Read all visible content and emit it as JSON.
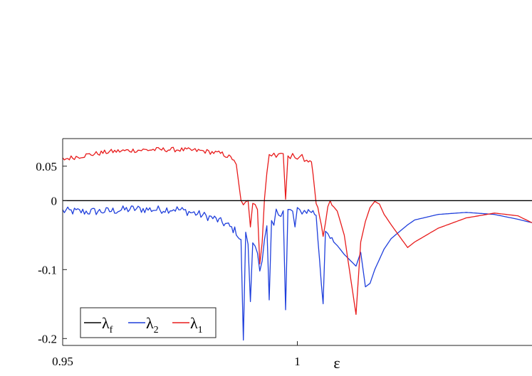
{
  "chart_data": {
    "type": "line",
    "xlabel": "ε",
    "ylabel": "",
    "title": "",
    "xlim": [
      0.95,
      1.05
    ],
    "ylim": [
      -0.21,
      0.09
    ],
    "xticks": [
      {
        "value": 0.95,
        "label": "0.95"
      },
      {
        "value": 1.0,
        "label": "1"
      }
    ],
    "yticks": [
      {
        "value": 0.05,
        "label": "0.05"
      },
      {
        "value": 0.0,
        "label": "0"
      },
      {
        "value": -0.1,
        "label": "-0.1"
      },
      {
        "value": -0.2,
        "label": "-0.2"
      }
    ],
    "legend_position": "bottom-left",
    "grid": false,
    "series": [
      {
        "name": "λf",
        "name_main": "λ",
        "name_sub": "f",
        "color": "#000000",
        "x": [
          0.95,
          1.05
        ],
        "y": [
          0.0,
          0.0
        ]
      },
      {
        "name": "λ2",
        "name_main": "λ",
        "name_sub": "2",
        "color": "#1f3fdc",
        "noise": 0.006,
        "x": [
          0.95,
          0.955,
          0.96,
          0.965,
          0.97,
          0.974,
          0.978,
          0.982,
          0.985,
          0.987,
          0.988,
          0.9885,
          0.989,
          0.9895,
          0.99,
          0.9905,
          0.991,
          0.9915,
          0.992,
          0.9925,
          0.993,
          0.9935,
          0.994,
          0.9945,
          0.995,
          0.9955,
          0.996,
          0.9965,
          0.997,
          0.9975,
          0.998,
          0.9985,
          0.999,
          0.9995,
          1.0,
          1.0005,
          1.001,
          1.0015,
          1.002,
          1.003,
          1.004,
          1.0055,
          1.006,
          1.0065,
          1.007,
          1.0085,
          1.01,
          1.0125,
          1.0135,
          1.0145,
          1.0155,
          1.0165,
          1.0175,
          1.0185,
          1.02,
          1.0235,
          1.025,
          1.03,
          1.036,
          1.042,
          1.047,
          1.05
        ],
        "y": [
          -0.015,
          -0.016,
          -0.015,
          -0.012,
          -0.013,
          -0.012,
          -0.018,
          -0.025,
          -0.035,
          -0.045,
          -0.06,
          -0.2,
          -0.05,
          -0.06,
          -0.15,
          -0.06,
          -0.065,
          -0.07,
          -0.1,
          -0.09,
          -0.06,
          -0.04,
          -0.15,
          -0.03,
          -0.04,
          -0.01,
          -0.015,
          -0.02,
          -0.015,
          -0.16,
          -0.015,
          -0.015,
          -0.015,
          -0.04,
          -0.015,
          -0.015,
          -0.015,
          -0.015,
          -0.015,
          -0.015,
          -0.02,
          -0.15,
          -0.05,
          -0.05,
          -0.055,
          -0.065,
          -0.078,
          -0.095,
          -0.075,
          -0.125,
          -0.12,
          -0.1,
          -0.085,
          -0.07,
          -0.055,
          -0.035,
          -0.028,
          -0.02,
          -0.017,
          -0.02,
          -0.027,
          -0.032
        ]
      },
      {
        "name": "λ1",
        "name_main": "λ",
        "name_sub": "1",
        "color": "#e81b1b",
        "noise": 0.0035,
        "x": [
          0.95,
          0.955,
          0.96,
          0.965,
          0.97,
          0.975,
          0.98,
          0.984,
          0.9865,
          0.987,
          0.988,
          0.9885,
          0.989,
          0.9895,
          0.99,
          0.9905,
          0.991,
          0.9915,
          0.992,
          0.9925,
          0.993,
          0.9935,
          0.994,
          0.9945,
          0.995,
          0.9955,
          0.996,
          0.9965,
          0.997,
          0.9975,
          0.998,
          0.9985,
          0.999,
          0.9995,
          1.0,
          1.0005,
          1.001,
          1.0015,
          1.002,
          1.003,
          1.004,
          1.0055,
          1.006,
          1.0065,
          1.007,
          1.0085,
          1.01,
          1.0125,
          1.0135,
          1.0145,
          1.0155,
          1.0165,
          1.0175,
          1.0185,
          1.02,
          1.0235,
          1.025,
          1.03,
          1.036,
          1.042,
          1.047,
          1.05
        ],
        "y": [
          0.06,
          0.066,
          0.071,
          0.073,
          0.074,
          0.074,
          0.072,
          0.068,
          0.06,
          0.05,
          -0.001,
          -0.004,
          -0.004,
          -0.002,
          -0.04,
          -0.002,
          -0.003,
          -0.01,
          -0.09,
          -0.06,
          0.003,
          0.04,
          0.07,
          0.066,
          0.068,
          0.06,
          0.07,
          0.072,
          0.07,
          0.0,
          0.065,
          0.06,
          0.068,
          0.065,
          0.058,
          0.064,
          0.066,
          0.056,
          0.06,
          0.056,
          -0.001,
          -0.05,
          -0.03,
          -0.01,
          -0.003,
          -0.015,
          -0.05,
          -0.165,
          -0.06,
          -0.03,
          -0.01,
          -0.001,
          -0.005,
          -0.02,
          -0.035,
          -0.068,
          -0.06,
          -0.04,
          -0.025,
          -0.018,
          -0.022,
          -0.032
        ]
      }
    ]
  }
}
